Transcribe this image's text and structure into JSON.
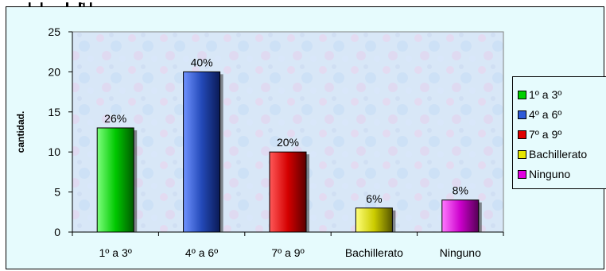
{
  "chart_data": {
    "type": "bar",
    "title": "",
    "xlabel": "",
    "ylabel": "cantidad.",
    "ylim": [
      0,
      25
    ],
    "yticks": [
      0,
      5,
      10,
      15,
      20,
      25
    ],
    "categories": [
      "1º a 3º",
      "4º a 6º",
      "7º a 9º",
      "Bachillerato",
      "Ninguno"
    ],
    "values": [
      13,
      20,
      10,
      3,
      4
    ],
    "data_labels": [
      "26%",
      "40%",
      "20%",
      "6%",
      "8%"
    ],
    "colors": [
      "#00d000",
      "#2f5bd8",
      "#e00000",
      "#e6e600",
      "#e000e0"
    ],
    "grid": false,
    "legend": {
      "placement": "right",
      "entries": [
        "1º a 3º",
        "4º a 6º",
        "7º a 9º",
        "Bachillerato",
        "Ninguno"
      ]
    }
  },
  "header": {
    "partial_title_fragment": "g"
  }
}
